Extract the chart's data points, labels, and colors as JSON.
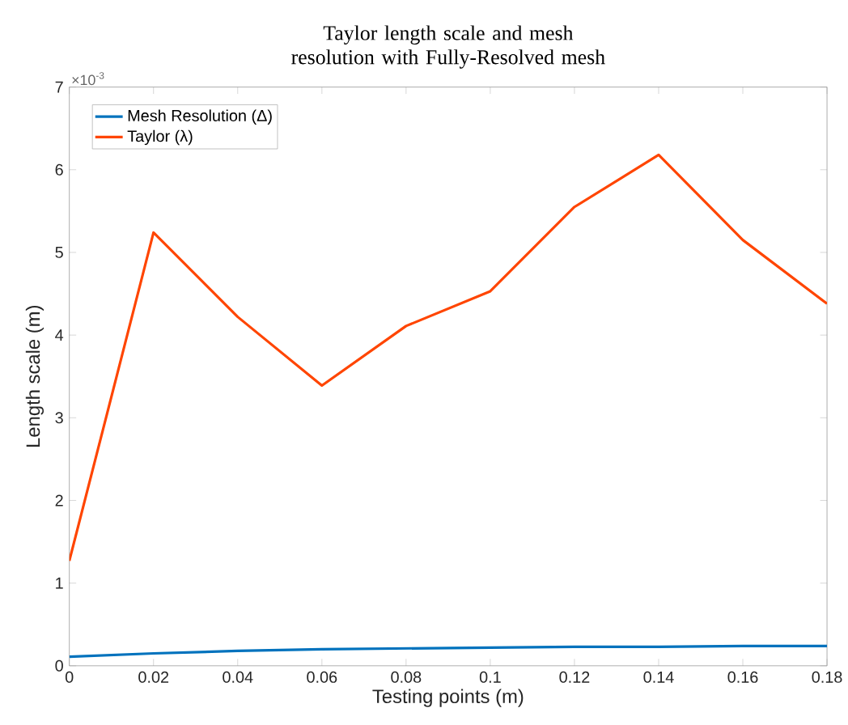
{
  "chart_data": {
    "type": "line",
    "title": "Taylor length scale and mesh resolution with Fully-Resolved mesh",
    "xlabel": "Testing points (m)",
    "ylabel": "Length scale (m)",
    "x": [
      0,
      0.02,
      0.04,
      0.06,
      0.08,
      0.1,
      0.12,
      0.14,
      0.16,
      0.18
    ],
    "series": [
      {
        "name": "Mesh Resolution (Δ)",
        "color": "#0072bd",
        "values": [
          0.11,
          0.15,
          0.18,
          0.2,
          0.21,
          0.22,
          0.23,
          0.23,
          0.24,
          0.24
        ]
      },
      {
        "name": "Taylor (λ)",
        "color": "#ff4500",
        "values": [
          1.27,
          5.24,
          4.22,
          3.39,
          4.11,
          4.53,
          5.55,
          6.18,
          5.15,
          4.38
        ]
      }
    ],
    "xlim": [
      0,
      0.18
    ],
    "xticks": [
      0,
      0.02,
      0.04,
      0.06,
      0.08,
      0.1,
      0.12,
      0.14,
      0.16,
      0.18
    ],
    "ylim": [
      0,
      7
    ],
    "yticks": [
      0,
      1,
      2,
      3,
      4,
      5,
      6,
      7
    ],
    "annotations": [
      "×10$^{-3}$"
    ],
    "legend": "top left",
    "grid": false,
    "line_style": "solid",
    "marker": "none"
  }
}
